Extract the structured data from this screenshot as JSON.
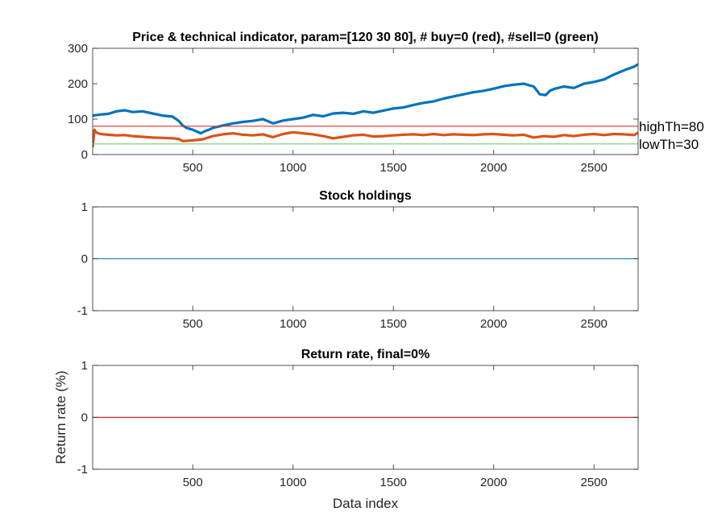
{
  "colors": {
    "price": "#0072BD",
    "indicator": "#D95319",
    "high_threshold": "#E03030",
    "low_threshold": "#6FD36F",
    "holdings": "#0072BD",
    "return_rate": "#CC2020",
    "axis": "#262626"
  },
  "chart_data": [
    {
      "type": "line",
      "title": "Price & technical indicator, param=[120 30 80],  # buy=0 (red), #sell=0 (green)",
      "xlabel": "",
      "ylabel": "",
      "xlim": [
        1,
        2720
      ],
      "ylim": [
        0,
        300
      ],
      "x_ticks": [
        500,
        1000,
        1500,
        2000,
        2500
      ],
      "y_ticks": [
        0,
        100,
        200,
        300
      ],
      "grid": false,
      "series": [
        {
          "key": "price",
          "x": [
            1,
            40,
            80,
            120,
            160,
            200,
            250,
            300,
            350,
            400,
            430,
            450,
            470,
            500,
            520,
            540,
            560,
            580,
            600,
            650,
            700,
            750,
            800,
            850,
            900,
            950,
            1000,
            1050,
            1100,
            1150,
            1200,
            1250,
            1300,
            1350,
            1400,
            1450,
            1500,
            1550,
            1600,
            1650,
            1700,
            1750,
            1800,
            1850,
            1900,
            1950,
            2000,
            2050,
            2100,
            2150,
            2180,
            2200,
            2230,
            2260,
            2280,
            2300,
            2350,
            2400,
            2450,
            2500,
            2550,
            2600,
            2650,
            2700,
            2720
          ],
          "y": [
            110,
            113,
            115,
            122,
            125,
            120,
            122,
            116,
            110,
            107,
            95,
            82,
            75,
            70,
            65,
            60,
            66,
            70,
            75,
            82,
            88,
            92,
            95,
            100,
            88,
            96,
            100,
            104,
            112,
            108,
            116,
            118,
            115,
            122,
            118,
            124,
            130,
            133,
            140,
            146,
            150,
            158,
            164,
            170,
            176,
            180,
            186,
            193,
            197,
            200,
            195,
            192,
            170,
            168,
            180,
            185,
            192,
            188,
            200,
            205,
            212,
            226,
            238,
            248,
            255
          ]
        },
        {
          "key": "indicator",
          "x": [
            1,
            10,
            20,
            40,
            80,
            120,
            160,
            200,
            250,
            300,
            350,
            400,
            430,
            450,
            500,
            550,
            600,
            650,
            700,
            750,
            800,
            850,
            900,
            950,
            1000,
            1050,
            1100,
            1150,
            1200,
            1250,
            1300,
            1350,
            1400,
            1450,
            1500,
            1550,
            1600,
            1650,
            1700,
            1750,
            1800,
            1850,
            1900,
            1950,
            2000,
            2050,
            2100,
            2150,
            2200,
            2250,
            2300,
            2350,
            2400,
            2450,
            2500,
            2550,
            2600,
            2650,
            2700,
            2720
          ],
          "y": [
            20,
            70,
            62,
            58,
            56,
            54,
            55,
            52,
            50,
            48,
            47,
            46,
            44,
            38,
            40,
            43,
            52,
            57,
            60,
            56,
            54,
            57,
            49,
            58,
            63,
            60,
            57,
            52,
            46,
            50,
            54,
            56,
            51,
            52,
            54,
            56,
            57,
            55,
            58,
            55,
            57,
            56,
            55,
            57,
            58,
            56,
            54,
            56,
            48,
            52,
            50,
            55,
            52,
            56,
            58,
            55,
            58,
            57,
            55,
            62
          ]
        },
        {
          "key": "high_threshold",
          "x": [
            1,
            2720
          ],
          "y": [
            80,
            80
          ]
        },
        {
          "key": "low_threshold",
          "x": [
            1,
            2720
          ],
          "y": [
            30,
            30
          ]
        }
      ],
      "annotations": [
        {
          "text": "highTh=80",
          "x": 2720,
          "y": 80
        },
        {
          "text": "lowTh=30",
          "x": 2720,
          "y": 30
        }
      ]
    },
    {
      "type": "line",
      "title": "Stock holdings",
      "xlabel": "",
      "ylabel": "",
      "xlim": [
        1,
        2720
      ],
      "ylim": [
        -1,
        1
      ],
      "x_ticks": [
        500,
        1000,
        1500,
        2000,
        2500
      ],
      "y_ticks": [
        -1,
        0,
        1
      ],
      "grid": false,
      "series": [
        {
          "key": "holdings",
          "x": [
            1,
            2720
          ],
          "y": [
            0,
            0
          ]
        }
      ]
    },
    {
      "type": "line",
      "title": "Return rate, final=0%",
      "xlabel": "Data index",
      "ylabel": "Return rate (%)",
      "xlim": [
        1,
        2720
      ],
      "ylim": [
        -1,
        1
      ],
      "x_ticks": [
        500,
        1000,
        1500,
        2000,
        2500
      ],
      "y_ticks": [
        -1,
        0,
        1
      ],
      "grid": false,
      "series": [
        {
          "key": "return_rate",
          "x": [
            1,
            2720
          ],
          "y": [
            0,
            0
          ]
        }
      ]
    }
  ]
}
